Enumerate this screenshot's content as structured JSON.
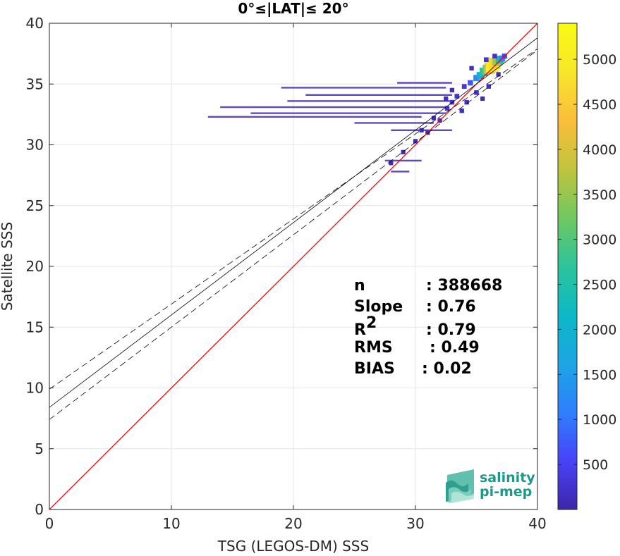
{
  "chart_data": {
    "type": "scatter",
    "title": "0°≤|LAT|≤ 20°",
    "xlabel": "TSG (LEGOS-DM) SSS",
    "ylabel": "Satellite SSS",
    "xlim": [
      0,
      40
    ],
    "ylim": [
      0,
      40
    ],
    "xticks": [
      "0",
      "10",
      "20",
      "30",
      "40"
    ],
    "yticks": [
      "0",
      "5",
      "10",
      "15",
      "20",
      "25",
      "30",
      "35",
      "40"
    ],
    "grid": true,
    "lines": {
      "identity": {
        "from": [
          0,
          0
        ],
        "to": [
          40,
          40
        ],
        "color": "#ff0000"
      },
      "fit": {
        "intercept": 8.4,
        "slope": 0.76,
        "x": [
          0,
          40
        ],
        "color": "#000000"
      },
      "fit_upper": {
        "intercept": 9.9,
        "slope": 0.7,
        "x": [
          0,
          40
        ],
        "color": "#000000"
      },
      "fit_lower": {
        "intercept": 7.4,
        "slope": 0.76,
        "x": [
          0,
          40
        ],
        "color": "#000000"
      }
    },
    "density_points": [
      [
        34.0,
        34.8,
        350
      ],
      [
        34.5,
        35.1,
        700
      ],
      [
        35.0,
        35.5,
        1200
      ],
      [
        35.3,
        35.7,
        1800
      ],
      [
        35.6,
        36.0,
        2600
      ],
      [
        35.9,
        36.2,
        3300
      ],
      [
        36.1,
        36.3,
        4200
      ],
      [
        36.3,
        36.5,
        5200
      ],
      [
        36.5,
        36.7,
        4700
      ],
      [
        36.7,
        36.9,
        3600
      ],
      [
        36.9,
        37.0,
        2300
      ],
      [
        37.1,
        37.1,
        1200
      ],
      [
        37.3,
        37.3,
        500
      ],
      [
        33.4,
        34.0,
        300
      ],
      [
        33.0,
        33.5,
        250
      ],
      [
        32.6,
        33.0,
        200
      ],
      [
        32.0,
        32.0,
        150
      ],
      [
        31.0,
        31.0,
        120
      ],
      [
        30.0,
        30.3,
        100
      ],
      [
        29.0,
        29.4,
        80
      ],
      [
        28.0,
        28.5,
        60
      ],
      [
        34.2,
        33.5,
        200
      ],
      [
        33.8,
        32.8,
        180
      ],
      [
        35.0,
        34.3,
        250
      ],
      [
        36.0,
        34.8,
        160
      ],
      [
        34.6,
        36.3,
        140
      ],
      [
        35.8,
        37.0,
        300
      ],
      [
        36.5,
        37.3,
        250
      ],
      [
        33.0,
        34.5,
        150
      ],
      [
        32.5,
        33.8,
        130
      ],
      [
        31.5,
        32.2,
        110
      ],
      [
        30.5,
        31.2,
        90
      ],
      [
        36.8,
        35.8,
        120
      ],
      [
        35.5,
        33.8,
        90
      ]
    ],
    "streaks": [
      {
        "y": 34.7,
        "x0": 19.0,
        "x1": 32.5,
        "value": 80
      },
      {
        "y": 34.1,
        "x0": 21.0,
        "x1": 33.0,
        "value": 80
      },
      {
        "y": 33.6,
        "x0": 19.5,
        "x1": 32.8,
        "value": 90
      },
      {
        "y": 33.1,
        "x0": 14.0,
        "x1": 32.5,
        "value": 120
      },
      {
        "y": 32.6,
        "x0": 16.5,
        "x1": 32.5,
        "value": 90
      },
      {
        "y": 32.3,
        "x0": 13.0,
        "x1": 30.5,
        "value": 110
      },
      {
        "y": 31.8,
        "x0": 25.0,
        "x1": 31.5,
        "value": 80
      },
      {
        "y": 31.2,
        "x0": 28.0,
        "x1": 33.0,
        "value": 70
      },
      {
        "y": 28.7,
        "x0": 27.5,
        "x1": 30.5,
        "value": 60
      },
      {
        "y": 27.8,
        "x0": 28.0,
        "x1": 29.5,
        "value": 50
      },
      {
        "y": 35.1,
        "x0": 28.5,
        "x1": 33.0,
        "value": 70
      }
    ],
    "colorbar": {
      "min": 0,
      "max": 5400,
      "ticks": [
        "500",
        "1000",
        "1500",
        "2000",
        "2500",
        "3000",
        "3500",
        "4000",
        "4500",
        "5000"
      ],
      "colormap": [
        "#3e26a8",
        "#4743f8",
        "#2f7ffe",
        "#1ca5e4",
        "#0db8c5",
        "#2dc39b",
        "#6fc85f",
        "#c0c43e",
        "#fbbd3b",
        "#f7e62a",
        "#f9fb14"
      ]
    },
    "stats": [
      {
        "label": "n",
        "value": ": 388668"
      },
      {
        "label": "Slope",
        "value": ": 0.76"
      },
      {
        "label": "R",
        "sup": "2",
        "value": ": 0.79"
      },
      {
        "label": "RMS",
        "value": ": 0.49"
      },
      {
        "label": "BIAS",
        "value": ": 0.02"
      }
    ]
  },
  "logo": {
    "line1": "salinity",
    "line2": "pi-mep",
    "color": "#1a9b8a"
  }
}
